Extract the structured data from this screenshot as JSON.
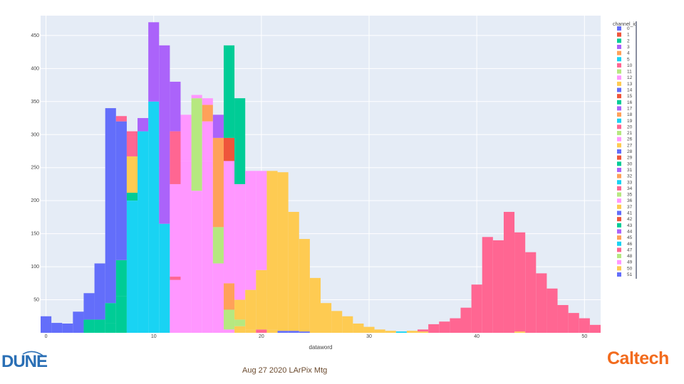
{
  "chart_data": {
    "type": "bar",
    "barmode": "stack",
    "xlabel": "dataword",
    "ylabel": "",
    "xlim": [
      -0.5,
      51.5
    ],
    "ylim": [
      0,
      480
    ],
    "x_ticks": [
      0,
      10,
      20,
      30,
      40,
      50
    ],
    "y_ticks": [
      50,
      100,
      150,
      200,
      250,
      300,
      350,
      400,
      450
    ],
    "grid": true,
    "legend_title": "channel_id",
    "legend_position": "right",
    "legend": [
      {
        "name": "0",
        "color": "#636efa"
      },
      {
        "name": "1",
        "color": "#ef553b"
      },
      {
        "name": "2",
        "color": "#00cc96"
      },
      {
        "name": "3",
        "color": "#ab63fa"
      },
      {
        "name": "4",
        "color": "#ffa15a"
      },
      {
        "name": "5",
        "color": "#19d3f3"
      },
      {
        "name": "10",
        "color": "#ff6692"
      },
      {
        "name": "11",
        "color": "#b6e880"
      },
      {
        "name": "12",
        "color": "#ff97ff"
      },
      {
        "name": "13",
        "color": "#fecb52"
      },
      {
        "name": "14",
        "color": "#636efa"
      },
      {
        "name": "15",
        "color": "#ef553b"
      },
      {
        "name": "16",
        "color": "#00cc96"
      },
      {
        "name": "17",
        "color": "#ab63fa"
      },
      {
        "name": "18",
        "color": "#ffa15a"
      },
      {
        "name": "19",
        "color": "#19d3f3"
      },
      {
        "name": "20",
        "color": "#ff6692"
      },
      {
        "name": "21",
        "color": "#b6e880"
      },
      {
        "name": "26",
        "color": "#ff97ff"
      },
      {
        "name": "27",
        "color": "#fecb52"
      },
      {
        "name": "28",
        "color": "#636efa"
      },
      {
        "name": "29",
        "color": "#ef553b"
      },
      {
        "name": "30",
        "color": "#00cc96"
      },
      {
        "name": "31",
        "color": "#ab63fa"
      },
      {
        "name": "32",
        "color": "#ffa15a"
      },
      {
        "name": "33",
        "color": "#19d3f3"
      },
      {
        "name": "34",
        "color": "#ff6692"
      },
      {
        "name": "35",
        "color": "#b6e880"
      },
      {
        "name": "36",
        "color": "#ff97ff"
      },
      {
        "name": "37",
        "color": "#fecb52"
      },
      {
        "name": "41",
        "color": "#636efa"
      },
      {
        "name": "42",
        "color": "#ef553b"
      },
      {
        "name": "43",
        "color": "#00cc96"
      },
      {
        "name": "44",
        "color": "#ab63fa"
      },
      {
        "name": "45",
        "color": "#ffa15a"
      },
      {
        "name": "46",
        "color": "#19d3f3"
      },
      {
        "name": "47",
        "color": "#ff6692"
      },
      {
        "name": "48",
        "color": "#b6e880"
      },
      {
        "name": "49",
        "color": "#ff97ff"
      },
      {
        "name": "50",
        "color": "#fecb52"
      },
      {
        "name": "51",
        "color": "#636efa"
      }
    ],
    "bins": [
      {
        "x": 0,
        "stack": [
          [
            "#636efa",
            25
          ]
        ]
      },
      {
        "x": 1,
        "stack": [
          [
            "#636efa",
            15
          ]
        ]
      },
      {
        "x": 2,
        "stack": [
          [
            "#636efa",
            14
          ]
        ]
      },
      {
        "x": 3,
        "stack": [
          [
            "#636efa",
            32
          ]
        ]
      },
      {
        "x": 4,
        "stack": [
          [
            "#00cc96",
            20
          ],
          [
            "#636efa",
            40
          ]
        ]
      },
      {
        "x": 5,
        "stack": [
          [
            "#00cc96",
            20
          ],
          [
            "#636efa",
            85
          ]
        ]
      },
      {
        "x": 6,
        "stack": [
          [
            "#00cc96",
            15
          ],
          [
            "#00cc96",
            30
          ],
          [
            "#636efa",
            295
          ]
        ]
      },
      {
        "x": 7,
        "stack": [
          [
            "#00cc96",
            55
          ],
          [
            "#00cc96",
            55
          ],
          [
            "#636efa",
            210
          ],
          [
            "#ff6692",
            8
          ]
        ]
      },
      {
        "x": 8,
        "stack": [
          [
            "#19d3f3",
            200
          ],
          [
            "#00cc96",
            12
          ],
          [
            "#fecb52",
            55
          ],
          [
            "#ff6692",
            30
          ],
          [
            "#ff6692",
            8
          ]
        ]
      },
      {
        "x": 9,
        "stack": [
          [
            "#19d3f3",
            305
          ],
          [
            "#ab63fa",
            20
          ]
        ]
      },
      {
        "x": 10,
        "stack": [
          [
            "#19d3f3",
            350
          ],
          [
            "#ab63fa",
            120
          ]
        ]
      },
      {
        "x": 11,
        "stack": [
          [
            "#19d3f3",
            165
          ],
          [
            "#ab63fa",
            270
          ]
        ]
      },
      {
        "x": 12,
        "stack": [
          [
            "#ff97ff",
            80
          ],
          [
            "#ff6692",
            5
          ],
          [
            "#ff97ff",
            140
          ],
          [
            "#ff6692",
            80
          ],
          [
            "#ab63fa",
            75
          ]
        ]
      },
      {
        "x": 13,
        "stack": [
          [
            "#ff97ff",
            260
          ],
          [
            "#ff97ff",
            70
          ]
        ]
      },
      {
        "x": 14,
        "stack": [
          [
            "#ff97ff",
            215
          ],
          [
            "#b6e880",
            140
          ],
          [
            "#ff97ff",
            5
          ]
        ]
      },
      {
        "x": 15,
        "stack": [
          [
            "#ff97ff",
            260
          ],
          [
            "#ff97ff",
            60
          ],
          [
            "#ffa15a",
            25
          ],
          [
            "#ff97ff",
            10
          ]
        ]
      },
      {
        "x": 16,
        "stack": [
          [
            "#ff97ff",
            105
          ],
          [
            "#b6e880",
            55
          ],
          [
            "#ffa15a",
            135
          ],
          [
            "#ab63fa",
            35
          ]
        ]
      },
      {
        "x": 17,
        "stack": [
          [
            "#ff97ff",
            5
          ],
          [
            "#b6e880",
            30
          ],
          [
            "#ffa15a",
            40
          ],
          [
            "#ff97ff",
            185
          ],
          [
            "#ef553b",
            35
          ],
          [
            "#00cc96",
            140
          ]
        ]
      },
      {
        "x": 18,
        "stack": [
          [
            "#fecb52",
            10
          ],
          [
            "#b6e880",
            10
          ],
          [
            "#fecb52",
            30
          ],
          [
            "#ff97ff",
            175
          ],
          [
            "#00cc96",
            130
          ]
        ]
      },
      {
        "x": 19,
        "stack": [
          [
            "#fecb52",
            5
          ],
          [
            "#fecb52",
            60
          ],
          [
            "#ff97ff",
            180
          ]
        ]
      },
      {
        "x": 20,
        "stack": [
          [
            "#ff6692",
            5
          ],
          [
            "#fecb52",
            90
          ],
          [
            "#ff97ff",
            150
          ]
        ]
      },
      {
        "x": 21,
        "stack": [
          [
            "#fecb52",
            5
          ],
          [
            "#fecb52",
            240
          ]
        ]
      },
      {
        "x": 22,
        "stack": [
          [
            "#636efa",
            3
          ],
          [
            "#fecb52",
            240
          ]
        ]
      },
      {
        "x": 23,
        "stack": [
          [
            "#636efa",
            3
          ],
          [
            "#fecb52",
            180
          ]
        ]
      },
      {
        "x": 24,
        "stack": [
          [
            "#636efa",
            2
          ],
          [
            "#fecb52",
            140
          ]
        ]
      },
      {
        "x": 25,
        "stack": [
          [
            "#fecb52",
            83
          ]
        ]
      },
      {
        "x": 26,
        "stack": [
          [
            "#fecb52",
            45
          ]
        ]
      },
      {
        "x": 27,
        "stack": [
          [
            "#fecb52",
            33
          ]
        ]
      },
      {
        "x": 28,
        "stack": [
          [
            "#fecb52",
            25
          ]
        ]
      },
      {
        "x": 29,
        "stack": [
          [
            "#fecb52",
            14
          ]
        ]
      },
      {
        "x": 30,
        "stack": [
          [
            "#fecb52",
            9
          ]
        ]
      },
      {
        "x": 31,
        "stack": [
          [
            "#fecb52",
            5
          ]
        ]
      },
      {
        "x": 32,
        "stack": [
          [
            "#fecb52",
            3
          ]
        ]
      },
      {
        "x": 33,
        "stack": [
          [
            "#19d3f3",
            2
          ]
        ]
      },
      {
        "x": 34,
        "stack": [
          [
            "#fecb52",
            3
          ]
        ]
      },
      {
        "x": 35,
        "stack": [
          [
            "#fecb52",
            2
          ],
          [
            "#ff6692",
            3
          ]
        ]
      },
      {
        "x": 36,
        "stack": [
          [
            "#ff6692",
            13
          ]
        ]
      },
      {
        "x": 37,
        "stack": [
          [
            "#ff6692",
            17
          ]
        ]
      },
      {
        "x": 38,
        "stack": [
          [
            "#ff6692",
            22
          ]
        ]
      },
      {
        "x": 39,
        "stack": [
          [
            "#ff6692",
            38
          ]
        ]
      },
      {
        "x": 40,
        "stack": [
          [
            "#ff6692",
            73
          ]
        ]
      },
      {
        "x": 41,
        "stack": [
          [
            "#ff6692",
            145
          ]
        ]
      },
      {
        "x": 42,
        "stack": [
          [
            "#ff6692",
            140
          ]
        ]
      },
      {
        "x": 43,
        "stack": [
          [
            "#ff6692",
            183
          ]
        ]
      },
      {
        "x": 44,
        "stack": [
          [
            "#fecb52",
            2
          ],
          [
            "#ff6692",
            150
          ]
        ]
      },
      {
        "x": 45,
        "stack": [
          [
            "#ff6692",
            122
          ]
        ]
      },
      {
        "x": 46,
        "stack": [
          [
            "#ff6692",
            90
          ]
        ]
      },
      {
        "x": 47,
        "stack": [
          [
            "#ff6692",
            67
          ]
        ]
      },
      {
        "x": 48,
        "stack": [
          [
            "#ff6692",
            42
          ]
        ]
      },
      {
        "x": 49,
        "stack": [
          [
            "#ff6692",
            30
          ]
        ]
      },
      {
        "x": 50,
        "stack": [
          [
            "#ff6692",
            22
          ]
        ]
      },
      {
        "x": 51,
        "stack": [
          [
            "#ff6692",
            12
          ]
        ]
      }
    ]
  },
  "slide": {
    "footer": "Aug 27 2020 LArPix Mtg",
    "left_logo": "DUNE",
    "right_logo": "Caltech"
  }
}
